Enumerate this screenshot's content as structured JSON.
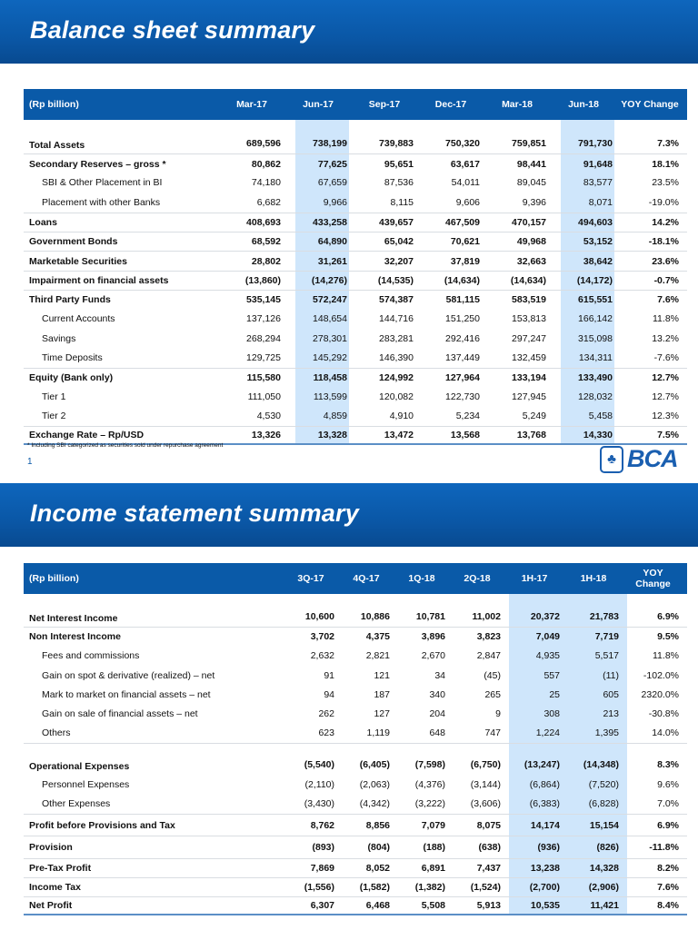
{
  "slide1": {
    "title": "Balance sheet summary",
    "headers": [
      "(Rp billion)",
      "Mar-17",
      "Jun-17",
      "Sep-17",
      "Dec-17",
      "Mar-18",
      "Jun-18",
      "YOY Change"
    ],
    "highlight_columns": [
      "Jun-17",
      "Jun-18"
    ],
    "rows": [
      {
        "label": "Total Assets",
        "values": [
          "689,596",
          "738,199",
          "739,883",
          "750,320",
          "759,851",
          "791,730",
          "7.3%"
        ],
        "bold": true,
        "sep": false
      },
      {
        "label": "Secondary Reserves – gross *",
        "values": [
          "80,862",
          "77,625",
          "95,651",
          "63,617",
          "98,441",
          "91,648",
          "18.1%"
        ],
        "bold": true,
        "sep": true
      },
      {
        "label": "SBI & Other Placement in BI",
        "values": [
          "74,180",
          "67,659",
          "87,536",
          "54,011",
          "89,045",
          "83,577",
          "23.5%"
        ],
        "indent": true
      },
      {
        "label": "Placement with other Banks",
        "values": [
          "6,682",
          "9,966",
          "8,115",
          "9,606",
          "9,396",
          "8,071",
          "-19.0%"
        ],
        "indent": true
      },
      {
        "label": "Loans",
        "values": [
          "408,693",
          "433,258",
          "439,657",
          "467,509",
          "470,157",
          "494,603",
          "14.2%"
        ],
        "bold": true,
        "sep": true
      },
      {
        "label": "Government Bonds",
        "values": [
          "68,592",
          "64,890",
          "65,042",
          "70,621",
          "49,968",
          "53,152",
          "-18.1%"
        ],
        "bold": true,
        "sep": true
      },
      {
        "label": "Marketable Securities",
        "values": [
          "28,802",
          "31,261",
          "32,207",
          "37,819",
          "32,663",
          "38,642",
          "23.6%"
        ],
        "bold": true,
        "sep": true
      },
      {
        "label": "Impairment on financial assets",
        "values": [
          "(13,860)",
          "(14,276)",
          "(14,535)",
          "(14,634)",
          "(14,634)",
          "(14,172)",
          "-0.7%"
        ],
        "bold": true,
        "sep": true
      },
      {
        "label": "Third Party Funds",
        "values": [
          "535,145",
          "572,247",
          "574,387",
          "581,115",
          "583,519",
          "615,551",
          "7.6%"
        ],
        "bold": true,
        "sep": true
      },
      {
        "label": "Current Accounts",
        "values": [
          "137,126",
          "148,654",
          "144,716",
          "151,250",
          "153,813",
          "166,142",
          "11.8%"
        ],
        "indent": true
      },
      {
        "label": "Savings",
        "values": [
          "268,294",
          "278,301",
          "283,281",
          "292,416",
          "297,247",
          "315,098",
          "13.2%"
        ],
        "indent": true
      },
      {
        "label": "Time Deposits",
        "values": [
          "129,725",
          "145,292",
          "146,390",
          "137,449",
          "132,459",
          "134,311",
          "-7.6%"
        ],
        "indent": true
      },
      {
        "label": "Equity (Bank only)",
        "values": [
          "115,580",
          "118,458",
          "124,992",
          "127,964",
          "133,194",
          "133,490",
          "12.7%"
        ],
        "bold": true,
        "sep": true
      },
      {
        "label": "Tier 1",
        "values": [
          "111,050",
          "113,599",
          "120,082",
          "122,730",
          "127,945",
          "128,032",
          "12.7%"
        ],
        "indent": true
      },
      {
        "label": "Tier 2",
        "values": [
          "4,530",
          "4,859",
          "4,910",
          "5,234",
          "5,249",
          "5,458",
          "12.3%"
        ],
        "indent": true
      },
      {
        "label": "Exchange Rate – Rp/USD",
        "values": [
          "13,326",
          "13,328",
          "13,472",
          "13,568",
          "13,768",
          "14,330",
          "7.5%"
        ],
        "bold": true,
        "sep": true
      }
    ],
    "footnote": "* Including SBI categorized as securities sold under repurchase agreement",
    "page_number": "1",
    "logo_text": "BCA"
  },
  "slide2": {
    "title": "Income statement summary",
    "headers": [
      "(Rp billion)",
      "3Q-17",
      "4Q-17",
      "1Q-18",
      "2Q-18",
      "1H-17",
      "1H-18",
      "YOY Change"
    ],
    "highlight_columns": [
      "1H-17",
      "1H-18"
    ],
    "rows": [
      {
        "label": "Net Interest Income",
        "values": [
          "10,600",
          "10,886",
          "10,781",
          "11,002",
          "20,372",
          "21,783",
          "6.9%"
        ],
        "bold": true
      },
      {
        "label": "Non Interest Income",
        "values": [
          "3,702",
          "4,375",
          "3,896",
          "3,823",
          "7,049",
          "7,719",
          "9.5%"
        ],
        "bold": true,
        "sep": true
      },
      {
        "label": "Fees and commissions",
        "values": [
          "2,632",
          "2,821",
          "2,670",
          "2,847",
          "4,935",
          "5,517",
          "11.8%"
        ],
        "indent": true
      },
      {
        "label": "Gain on spot & derivative (realized) – net",
        "values": [
          "91",
          "121",
          "34",
          "(45)",
          "557",
          "(11)",
          "-102.0%"
        ],
        "indent": true
      },
      {
        "label": "Mark to market on financial assets – net",
        "values": [
          "94",
          "187",
          "340",
          "265",
          "25",
          "605",
          "2320.0%"
        ],
        "indent": true
      },
      {
        "label": "Gain on sale of financial assets – net",
        "values": [
          "262",
          "127",
          "204",
          "9",
          "308",
          "213",
          "-30.8%"
        ],
        "indent": true
      },
      {
        "label": "Others",
        "values": [
          "623",
          "1,119",
          "648",
          "747",
          "1,224",
          "1,395",
          "14.0%"
        ],
        "indent": true
      },
      {
        "label": "Operational Expenses",
        "values": [
          "(5,540)",
          "(6,405)",
          "(7,598)",
          "(6,750)",
          "(13,247)",
          "(14,348)",
          "8.3%"
        ],
        "bold": true,
        "sep": true,
        "gap": true
      },
      {
        "label": "Personnel Expenses",
        "values": [
          "(2,110)",
          "(2,063)",
          "(4,376)",
          "(3,144)",
          "(6,864)",
          "(7,520)",
          "9.6%"
        ],
        "indent": true
      },
      {
        "label": "Other Expenses",
        "values": [
          "(3,430)",
          "(4,342)",
          "(3,222)",
          "(3,606)",
          "(6,383)",
          "(6,828)",
          "7.0%"
        ],
        "indent": true
      },
      {
        "label": "Profit before Provisions and Tax",
        "values": [
          "8,762",
          "8,856",
          "7,079",
          "8,075",
          "14,174",
          "15,154",
          "6.9%"
        ],
        "bold": true,
        "sep": true,
        "tall": true
      },
      {
        "label": "Provision",
        "values": [
          "(893)",
          "(804)",
          "(188)",
          "(638)",
          "(936)",
          "(826)",
          "-11.8%"
        ],
        "bold": true,
        "sep": true,
        "tall": true
      },
      {
        "label": "Pre-Tax Profit",
        "values": [
          "7,869",
          "8,052",
          "6,891",
          "7,437",
          "13,238",
          "14,328",
          "8.2%"
        ],
        "bold": true,
        "sep": true
      },
      {
        "label": "Income Tax",
        "values": [
          "(1,556)",
          "(1,582)",
          "(1,382)",
          "(1,524)",
          "(2,700)",
          "(2,906)",
          "7.6%"
        ],
        "bold": true,
        "sep": true
      },
      {
        "label": "Net Profit",
        "values": [
          "6,307",
          "6,468",
          "5,508",
          "5,913",
          "10,535",
          "11,421",
          "8.4%"
        ],
        "bold": true,
        "sep": true
      }
    ]
  },
  "colors": {
    "brand_blue": "#0a5aa8",
    "highlight": "#cfe6fb"
  }
}
